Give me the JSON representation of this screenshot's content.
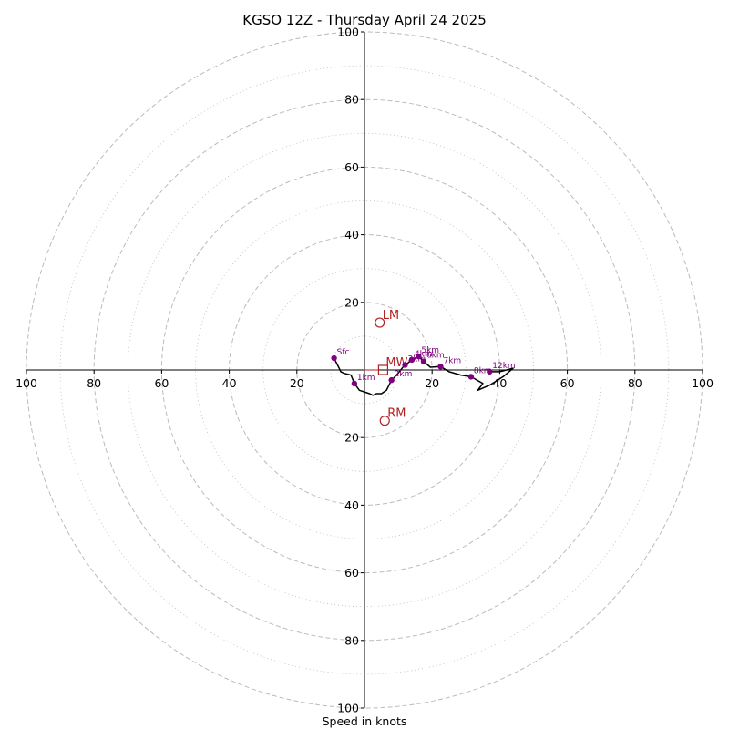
{
  "chart_data": {
    "type": "hodograph",
    "title": "KGSO 12Z - Thursday April 24 2025",
    "xlabel": "Speed in knots",
    "ylabel": "",
    "range": [
      -100,
      100
    ],
    "tick_values": [
      20,
      40,
      60,
      80,
      100
    ],
    "ticks": {
      "x_left": [
        "100",
        "80",
        "60",
        "40",
        "20"
      ],
      "x_right": [
        "20",
        "40",
        "60",
        "80",
        "100"
      ],
      "y_top": [
        "100",
        "80",
        "60",
        "40",
        "20"
      ],
      "y_bottom": [
        "20",
        "40",
        "60",
        "80",
        "100"
      ]
    },
    "rings_major": [
      20,
      40,
      60,
      80,
      100
    ],
    "rings_minor": [
      10,
      30,
      50,
      70,
      90
    ],
    "grid": true,
    "colors": {
      "trace": "#000000",
      "height_points": "#800080",
      "motion": "#b22222",
      "grid": "#bbbbbb"
    },
    "trace": [
      [
        -9.0,
        3.5
      ],
      [
        -7.5,
        0.5
      ],
      [
        -7.0,
        -0.5
      ],
      [
        -6.0,
        -1.0
      ],
      [
        -4.0,
        -1.5
      ],
      [
        -3.0,
        -4.0
      ],
      [
        -1.5,
        -6.0
      ],
      [
        0.0,
        -6.5
      ],
      [
        1.5,
        -7.0
      ],
      [
        2.5,
        -7.5
      ],
      [
        3.5,
        -7.0
      ],
      [
        5.0,
        -7.0
      ],
      [
        6.5,
        -6.0
      ],
      [
        8.0,
        -3.0
      ],
      [
        9.5,
        -1.5
      ],
      [
        11.5,
        1.0
      ],
      [
        14.0,
        3.0
      ],
      [
        16.0,
        4.0
      ],
      [
        17.5,
        2.5
      ],
      [
        19.5,
        0.8
      ],
      [
        22.5,
        1.0
      ],
      [
        25.0,
        -0.5
      ],
      [
        28.5,
        -1.5
      ],
      [
        31.5,
        -2.0
      ],
      [
        35.0,
        -4.0
      ],
      [
        33.5,
        -6.0
      ],
      [
        37.0,
        -4.5
      ],
      [
        41.0,
        -2.0
      ],
      [
        44.0,
        0.5
      ],
      [
        40.0,
        -0.5
      ],
      [
        37.0,
        -0.5
      ]
    ],
    "height_points": [
      {
        "label": "Sfc",
        "u": -9.0,
        "v": 3.5
      },
      {
        "label": "1km",
        "u": -3.0,
        "v": -4.0
      },
      {
        "label": "2km",
        "u": 8.0,
        "v": -3.0
      },
      {
        "label": "3km",
        "u": 12.0,
        "v": 1.5
      },
      {
        "label": "4km",
        "u": 14.0,
        "v": 3.0
      },
      {
        "label": "5km",
        "u": 16.0,
        "v": 4.0
      },
      {
        "label": "6km",
        "u": 17.5,
        "v": 2.5
      },
      {
        "label": "7km",
        "u": 22.5,
        "v": 1.0
      },
      {
        "label": "8km",
        "u": 31.5,
        "v": -2.0
      },
      {
        "label": "12km",
        "u": 37.0,
        "v": -0.5
      }
    ],
    "storm_motions": [
      {
        "label": "LM",
        "u": 4.5,
        "v": 14.0,
        "marker": "circle"
      },
      {
        "label": "RM",
        "u": 6.0,
        "v": -15.0,
        "marker": "circle"
      },
      {
        "label": "MW",
        "u": 5.5,
        "v": 0.0,
        "marker": "square"
      }
    ]
  }
}
